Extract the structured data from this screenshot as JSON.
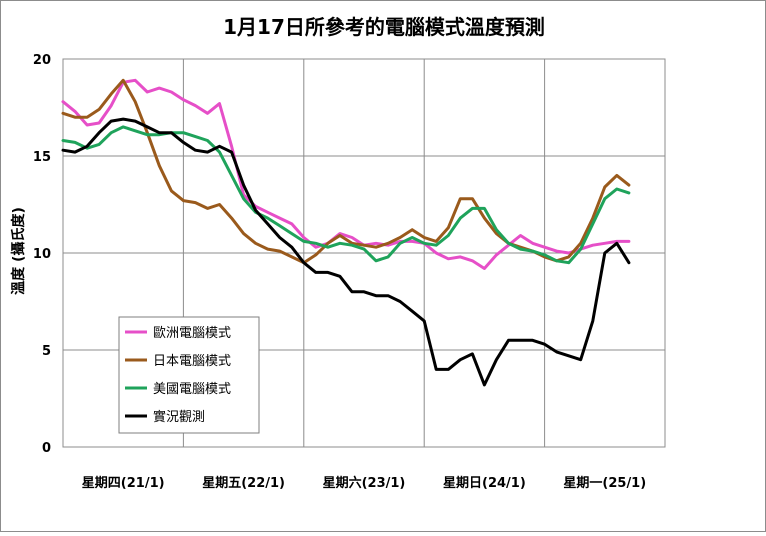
{
  "chart_data": {
    "type": "line",
    "title": "1月17日所參考的電腦模式溫度預測",
    "ylabel": "溫度 (攝氏度)",
    "ylim": [
      0,
      20
    ],
    "yticks": [
      0,
      5,
      10,
      15,
      20
    ],
    "categories": [
      "星期四(21/1)",
      "星期五(22/1)",
      "星期六(23/1)",
      "星期日(24/1)",
      "星期一(25/1)"
    ],
    "grid": true,
    "legend_position": "bottom-left",
    "x": [
      0,
      0.1,
      0.2,
      0.3,
      0.4,
      0.5,
      0.6,
      0.7,
      0.8,
      0.9,
      1.0,
      1.1,
      1.2,
      1.3,
      1.4,
      1.5,
      1.6,
      1.7,
      1.8,
      1.9,
      2.0,
      2.1,
      2.2,
      2.3,
      2.4,
      2.5,
      2.6,
      2.7,
      2.8,
      2.9,
      3.0,
      3.1,
      3.2,
      3.3,
      3.4,
      3.5,
      3.6,
      3.7,
      3.8,
      3.9,
      4.0,
      4.1,
      4.2,
      4.3,
      4.4,
      4.5,
      4.6,
      4.7
    ],
    "series": [
      {
        "name": "歐洲電腦模式",
        "color": "#e64fc8",
        "values": [
          17.8,
          17.3,
          16.6,
          16.7,
          17.6,
          18.8,
          18.9,
          18.3,
          18.5,
          18.3,
          17.9,
          17.6,
          17.2,
          17.7,
          15.5,
          13.0,
          12.4,
          12.1,
          11.8,
          11.5,
          10.8,
          10.3,
          10.5,
          11.0,
          10.8,
          10.4,
          10.5,
          10.4,
          10.6,
          10.6,
          10.5,
          10.0,
          9.7,
          9.8,
          9.6,
          9.2,
          9.9,
          10.4,
          10.9,
          10.5,
          10.3,
          10.1,
          10.0,
          10.2,
          10.4,
          10.5,
          10.6,
          10.6
        ]
      },
      {
        "name": "日本電腦模式",
        "color": "#9a5a1c",
        "values": [
          17.2,
          17.0,
          17.0,
          17.4,
          18.2,
          18.9,
          17.8,
          16.2,
          14.5,
          13.2,
          12.7,
          12.6,
          12.3,
          12.5,
          11.8,
          11.0,
          10.5,
          10.2,
          10.1,
          9.8,
          9.5,
          9.9,
          10.5,
          10.9,
          10.5,
          10.4,
          10.3,
          10.5,
          10.8,
          11.2,
          10.8,
          10.6,
          11.3,
          12.8,
          12.8,
          11.8,
          11.0,
          10.5,
          10.3,
          10.1,
          9.8,
          9.6,
          9.8,
          10.5,
          11.8,
          13.4,
          14.0,
          13.5
        ]
      },
      {
        "name": "美國電腦模式",
        "color": "#1fa35b",
        "values": [
          15.8,
          15.7,
          15.4,
          15.6,
          16.2,
          16.5,
          16.3,
          16.1,
          16.1,
          16.2,
          16.2,
          16.0,
          15.8,
          15.2,
          14.0,
          12.8,
          12.1,
          11.8,
          11.4,
          11.0,
          10.6,
          10.5,
          10.3,
          10.5,
          10.4,
          10.2,
          9.6,
          9.8,
          10.5,
          10.8,
          10.5,
          10.4,
          10.9,
          11.8,
          12.3,
          12.3,
          11.2,
          10.5,
          10.2,
          10.1,
          9.9,
          9.6,
          9.5,
          10.2,
          11.5,
          12.8,
          13.3,
          13.1
        ]
      },
      {
        "name": "實況觀測",
        "color": "#000000",
        "values": [
          15.3,
          15.2,
          15.5,
          16.2,
          16.8,
          16.9,
          16.8,
          16.5,
          16.2,
          16.2,
          15.7,
          15.3,
          15.2,
          15.5,
          15.2,
          13.5,
          12.2,
          11.5,
          10.8,
          10.3,
          9.5,
          9.0,
          9.0,
          8.8,
          8.0,
          8.0,
          7.8,
          7.8,
          7.5,
          7.0,
          6.5,
          4.0,
          4.0,
          4.5,
          4.8,
          3.2,
          4.5,
          5.5,
          5.5,
          5.5,
          5.3,
          4.9,
          4.7,
          4.5,
          6.5,
          10.0,
          10.5,
          9.5
        ]
      }
    ]
  }
}
